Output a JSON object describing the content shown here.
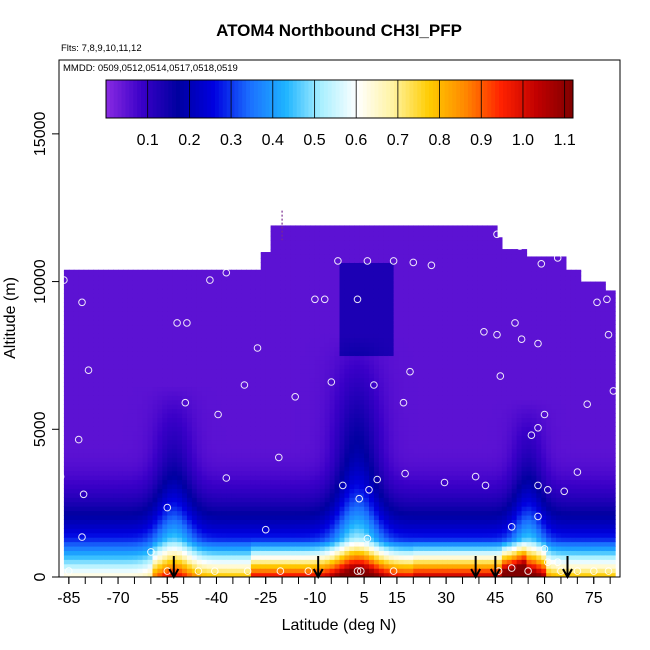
{
  "chart_data": {
    "type": "heatmap",
    "title": "ATOM4 Northbound CH3I_PFP",
    "subtitle_lines": [
      "Flts: 7,8,9,10,11,12",
      "MMDD: 0509,0512,0514,0517,0518,0519"
    ],
    "xlabel": "Latitude (deg N)",
    "ylabel": "Altitude (m)",
    "xlim": [
      -88,
      83
    ],
    "ylim": [
      0,
      17500
    ],
    "x_ticks": [
      -85,
      -70,
      -55,
      -40,
      -25,
      -10,
      5,
      15,
      30,
      45,
      60,
      75
    ],
    "x_tick_labels": [
      "-85",
      "-70",
      "-55",
      "-40",
      "-25",
      "-10",
      "5",
      "15",
      "30",
      "45",
      "60",
      "75"
    ],
    "y_ticks": [
      0,
      5000,
      10000,
      15000
    ],
    "y_tick_labels": [
      "0",
      "5000",
      "10000",
      "15000"
    ],
    "colorbar": {
      "range": [
        0,
        1.12
      ],
      "ticks": [
        0.1,
        0.2,
        0.3,
        0.4,
        0.5,
        0.6,
        0.7,
        0.8,
        0.9,
        1.0,
        1.1
      ],
      "tick_labels": [
        "0.1",
        "0.2",
        "0.3",
        "0.4",
        "0.5",
        "0.6",
        "0.7",
        "0.8",
        "0.9",
        "1.0",
        "1.1"
      ],
      "colors": [
        "#8a2be2",
        "#3a00c8",
        "#0000a0",
        "#0000e0",
        "#1b6fff",
        "#1eb4ff",
        "#aaf0ff",
        "#ffffff",
        "#fff3a0",
        "#ffcc00",
        "#ff8800",
        "#ff2200",
        "#c00000",
        "#800000"
      ]
    },
    "grid": false,
    "flight_arrows_lat": [
      -53,
      -9,
      39,
      45,
      67
    ],
    "top_marker": {
      "lat": -20,
      "alt": 12400
    },
    "observations": [
      [
        -86.5,
        10050
      ],
      [
        -81,
        9300
      ],
      [
        -79,
        7000
      ],
      [
        -82,
        4650
      ],
      [
        -87.5,
        3400
      ],
      [
        -80.5,
        2800
      ],
      [
        -81,
        1350
      ],
      [
        -85,
        200
      ],
      [
        -65,
        10550
      ],
      [
        -52,
        8600
      ],
      [
        -49,
        8600
      ],
      [
        -49.5,
        5900
      ],
      [
        -55,
        2350
      ],
      [
        -60,
        850
      ],
      [
        -55,
        200
      ],
      [
        -45.5,
        200
      ],
      [
        -42,
        10050
      ],
      [
        -37,
        10300
      ],
      [
        -35,
        10900
      ],
      [
        -26.5,
        11200
      ],
      [
        -39.5,
        5500
      ],
      [
        -37,
        3350
      ],
      [
        -31.5,
        6500
      ],
      [
        -27.5,
        7750
      ],
      [
        -25,
        1600
      ],
      [
        -21,
        4050
      ],
      [
        -30.5,
        200
      ],
      [
        -40.5,
        200
      ],
      [
        -20.5,
        200
      ],
      [
        -16,
        6100
      ],
      [
        -10,
        9400
      ],
      [
        -3,
        10700
      ],
      [
        -7,
        9400
      ],
      [
        -5,
        6600
      ],
      [
        -1.5,
        3100
      ],
      [
        3.5,
        2650
      ],
      [
        6.5,
        2950
      ],
      [
        8,
        6500
      ],
      [
        9,
        3300
      ],
      [
        6,
        1300
      ],
      [
        3,
        200
      ],
      [
        -12,
        200
      ],
      [
        4,
        200
      ],
      [
        14,
        200
      ],
      [
        6,
        10700
      ],
      [
        3,
        9400
      ],
      [
        14,
        10700
      ],
      [
        20,
        10650
      ],
      [
        25.5,
        10550
      ],
      [
        19,
        6950
      ],
      [
        17,
        5900
      ],
      [
        17.5,
        3500
      ],
      [
        29.5,
        3200
      ],
      [
        39,
        3400
      ],
      [
        42,
        3100
      ],
      [
        41.5,
        8300
      ],
      [
        45.5,
        8200
      ],
      [
        46.5,
        6800
      ],
      [
        45.5,
        11600
      ],
      [
        52.5,
        11200
      ],
      [
        51,
        8600
      ],
      [
        53,
        8050
      ],
      [
        58,
        7900
      ],
      [
        60,
        5500
      ],
      [
        56,
        4800
      ],
      [
        58,
        5050
      ],
      [
        50,
        1700
      ],
      [
        58,
        2050
      ],
      [
        58,
        3100
      ],
      [
        61,
        2950
      ],
      [
        66,
        2900
      ],
      [
        60,
        950
      ],
      [
        61,
        500
      ],
      [
        64,
        500
      ],
      [
        55,
        200
      ],
      [
        46,
        200
      ],
      [
        65,
        200
      ],
      [
        70,
        200
      ],
      [
        75,
        200
      ],
      [
        79.5,
        200
      ],
      [
        50,
        300
      ],
      [
        59,
        10600
      ],
      [
        64,
        10800
      ],
      [
        68,
        10900
      ],
      [
        73,
        10300
      ],
      [
        76,
        9300
      ],
      [
        79,
        9400
      ],
      [
        79.5,
        8200
      ],
      [
        73,
        5850
      ],
      [
        70,
        3550
      ],
      [
        81,
        6300
      ]
    ]
  }
}
